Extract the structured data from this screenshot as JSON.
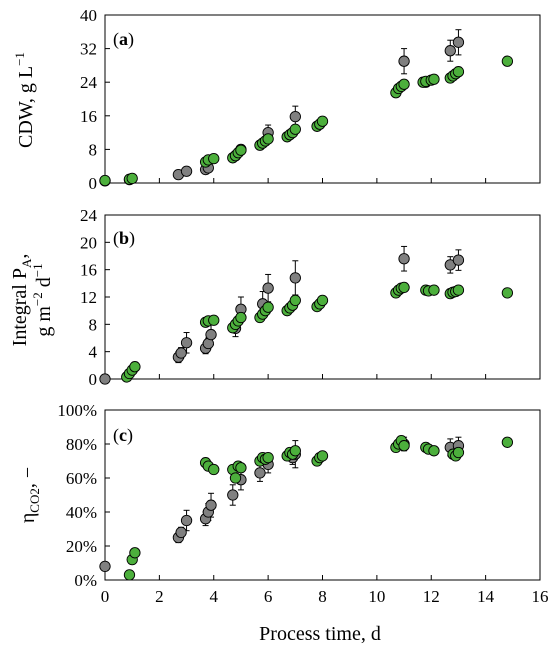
{
  "chart_data": [
    {
      "type": "scatter",
      "panel_label": "a",
      "ylabel_main": "CDW, g L",
      "ylabel_sup": "−1",
      "ylim": [
        0,
        40
      ],
      "yticks": [
        0,
        8,
        16,
        24,
        32,
        40
      ],
      "ytick_labels": [
        "0",
        "8",
        "16",
        "24",
        "32",
        "40"
      ],
      "xlim": [
        0,
        16
      ],
      "series": [
        {
          "color": "#808080",
          "points": [
            {
              "x": 0.0,
              "y": 0.5,
              "err": 0.2
            },
            {
              "x": 0.9,
              "y": 0.8,
              "err": 0.2
            },
            {
              "x": 2.7,
              "y": 2.0,
              "err": 0.3
            },
            {
              "x": 3.0,
              "y": 2.8,
              "err": 0.4
            },
            {
              "x": 3.7,
              "y": 3.2,
              "err": 0.5
            },
            {
              "x": 3.8,
              "y": 3.6,
              "err": 0.5
            },
            {
              "x": 4.8,
              "y": 6.5,
              "err": 1.0
            },
            {
              "x": 5.0,
              "y": 8.0,
              "err": 1.0
            },
            {
              "x": 6.0,
              "y": 12.0,
              "err": 1.8
            },
            {
              "x": 7.0,
              "y": 15.8,
              "err": 2.5
            },
            {
              "x": 11.0,
              "y": 29.0,
              "err": 3.0
            },
            {
              "x": 11.8,
              "y": 24.0,
              "err": 1.0
            },
            {
              "x": 12.7,
              "y": 31.5,
              "err": 2.5
            },
            {
              "x": 13.0,
              "y": 33.5,
              "err": 3.0
            }
          ]
        },
        {
          "color": "#4caf3c",
          "points": [
            {
              "x": 0.0,
              "y": 0.6
            },
            {
              "x": 0.9,
              "y": 0.9
            },
            {
              "x": 1.0,
              "y": 1.1
            },
            {
              "x": 3.7,
              "y": 5.0
            },
            {
              "x": 3.8,
              "y": 5.5
            },
            {
              "x": 4.0,
              "y": 5.8
            },
            {
              "x": 4.7,
              "y": 6.0
            },
            {
              "x": 4.8,
              "y": 6.5
            },
            {
              "x": 4.9,
              "y": 7.2
            },
            {
              "x": 5.0,
              "y": 7.8
            },
            {
              "x": 5.7,
              "y": 9.0
            },
            {
              "x": 5.8,
              "y": 9.5
            },
            {
              "x": 5.9,
              "y": 10.0
            },
            {
              "x": 6.0,
              "y": 10.5
            },
            {
              "x": 6.7,
              "y": 11.0
            },
            {
              "x": 6.8,
              "y": 11.5
            },
            {
              "x": 6.9,
              "y": 12.0
            },
            {
              "x": 7.0,
              "y": 12.8
            },
            {
              "x": 7.8,
              "y": 13.5
            },
            {
              "x": 7.9,
              "y": 14.0
            },
            {
              "x": 8.0,
              "y": 14.7
            },
            {
              "x": 10.7,
              "y": 21.5
            },
            {
              "x": 10.8,
              "y": 22.5
            },
            {
              "x": 10.9,
              "y": 23.0
            },
            {
              "x": 11.0,
              "y": 23.5
            },
            {
              "x": 11.7,
              "y": 24.0
            },
            {
              "x": 11.8,
              "y": 24.2
            },
            {
              "x": 12.0,
              "y": 24.5
            },
            {
              "x": 12.1,
              "y": 24.7
            },
            {
              "x": 12.7,
              "y": 25.0
            },
            {
              "x": 12.8,
              "y": 25.5
            },
            {
              "x": 12.9,
              "y": 26.0
            },
            {
              "x": 13.0,
              "y": 26.5
            },
            {
              "x": 14.8,
              "y": 29.0
            }
          ]
        }
      ]
    },
    {
      "type": "scatter",
      "panel_label": "b",
      "ylabel_main": "Integral P",
      "ylabel_sub": "A",
      "ylabel_line2": "g m",
      "ylabel_sup1": "−2",
      "ylabel_mid": " d",
      "ylabel_sup2": "−1",
      "ylim": [
        0,
        24
      ],
      "yticks": [
        0,
        4,
        8,
        12,
        16,
        20,
        24
      ],
      "ytick_labels": [
        "0",
        "4",
        "8",
        "12",
        "16",
        "20",
        "24"
      ],
      "xlim": [
        0,
        16
      ],
      "series": [
        {
          "color": "#808080",
          "points": [
            {
              "x": 0.0,
              "y": 0.0,
              "err": 0.2
            },
            {
              "x": 2.7,
              "y": 3.2,
              "err": 0.8
            },
            {
              "x": 2.8,
              "y": 3.8,
              "err": 0.8
            },
            {
              "x": 3.0,
              "y": 5.3,
              "err": 1.5
            },
            {
              "x": 3.7,
              "y": 4.5,
              "err": 0.8
            },
            {
              "x": 3.8,
              "y": 5.2,
              "err": 0.8
            },
            {
              "x": 3.9,
              "y": 6.5,
              "err": 1.5
            },
            {
              "x": 4.8,
              "y": 7.4,
              "err": 1.2
            },
            {
              "x": 5.0,
              "y": 10.2,
              "err": 1.8
            },
            {
              "x": 5.8,
              "y": 11.0,
              "err": 1.8
            },
            {
              "x": 6.0,
              "y": 13.3,
              "err": 2.0
            },
            {
              "x": 7.0,
              "y": 14.8,
              "err": 2.5
            },
            {
              "x": 11.0,
              "y": 17.6,
              "err": 1.8
            },
            {
              "x": 12.7,
              "y": 16.7,
              "err": 1.2
            },
            {
              "x": 13.0,
              "y": 17.4,
              "err": 1.5
            }
          ]
        },
        {
          "color": "#4caf3c",
          "points": [
            {
              "x": 0.8,
              "y": 0.3
            },
            {
              "x": 0.9,
              "y": 0.8
            },
            {
              "x": 1.0,
              "y": 1.3
            },
            {
              "x": 1.1,
              "y": 1.8
            },
            {
              "x": 3.7,
              "y": 8.3
            },
            {
              "x": 3.8,
              "y": 8.5
            },
            {
              "x": 4.0,
              "y": 8.6
            },
            {
              "x": 4.7,
              "y": 7.5
            },
            {
              "x": 4.8,
              "y": 8.0
            },
            {
              "x": 4.9,
              "y": 8.5
            },
            {
              "x": 5.0,
              "y": 9.0
            },
            {
              "x": 5.7,
              "y": 9.0
            },
            {
              "x": 5.8,
              "y": 9.5
            },
            {
              "x": 5.9,
              "y": 10.0
            },
            {
              "x": 6.0,
              "y": 10.5
            },
            {
              "x": 6.7,
              "y": 10.0
            },
            {
              "x": 6.8,
              "y": 10.4
            },
            {
              "x": 6.9,
              "y": 10.8
            },
            {
              "x": 7.0,
              "y": 11.5
            },
            {
              "x": 7.8,
              "y": 10.6
            },
            {
              "x": 7.9,
              "y": 11.0
            },
            {
              "x": 8.0,
              "y": 11.5
            },
            {
              "x": 10.7,
              "y": 12.6
            },
            {
              "x": 10.8,
              "y": 13.0
            },
            {
              "x": 10.9,
              "y": 13.3
            },
            {
              "x": 11.0,
              "y": 13.4
            },
            {
              "x": 11.8,
              "y": 13.0
            },
            {
              "x": 11.9,
              "y": 12.9
            },
            {
              "x": 12.1,
              "y": 13.0
            },
            {
              "x": 12.7,
              "y": 12.5
            },
            {
              "x": 12.8,
              "y": 12.7
            },
            {
              "x": 12.9,
              "y": 12.8
            },
            {
              "x": 13.0,
              "y": 13.0
            },
            {
              "x": 14.8,
              "y": 12.6
            }
          ]
        }
      ]
    },
    {
      "type": "scatter",
      "panel_label": "c",
      "ylabel_main": "η",
      "ylabel_sub": "CO2",
      "ylabel_tail": ", −",
      "ylim": [
        0,
        100
      ],
      "yticks": [
        0,
        20,
        40,
        60,
        80,
        100
      ],
      "ytick_labels": [
        "0%",
        "20%",
        "40%",
        "60%",
        "80%",
        "100%"
      ],
      "xlim": [
        0,
        16
      ],
      "xticks": [
        0,
        2,
        4,
        6,
        8,
        10,
        12,
        14,
        16
      ],
      "xtick_labels": [
        "0",
        "2",
        "4",
        "6",
        "8",
        "10",
        "12",
        "14",
        "16"
      ],
      "xlabel": "Process time, d",
      "series": [
        {
          "color": "#808080",
          "points": [
            {
              "x": 0.0,
              "y": 8,
              "err": 1
            },
            {
              "x": 2.7,
              "y": 25,
              "err": 3
            },
            {
              "x": 2.8,
              "y": 28,
              "err": 3
            },
            {
              "x": 3.0,
              "y": 35,
              "err": 6
            },
            {
              "x": 3.7,
              "y": 36,
              "err": 4
            },
            {
              "x": 3.8,
              "y": 40,
              "err": 5
            },
            {
              "x": 3.9,
              "y": 44,
              "err": 7
            },
            {
              "x": 4.7,
              "y": 50,
              "err": 6
            },
            {
              "x": 5.0,
              "y": 59,
              "err": 6
            },
            {
              "x": 5.7,
              "y": 63,
              "err": 5
            },
            {
              "x": 6.0,
              "y": 68,
              "err": 5
            },
            {
              "x": 6.9,
              "y": 72,
              "err": 4
            },
            {
              "x": 7.0,
              "y": 74,
              "err": 8
            },
            {
              "x": 11.0,
              "y": 80,
              "err": 4
            },
            {
              "x": 12.7,
              "y": 78,
              "err": 5
            },
            {
              "x": 13.0,
              "y": 79,
              "err": 5
            }
          ]
        },
        {
          "color": "#4caf3c",
          "points": [
            {
              "x": 0.9,
              "y": 3
            },
            {
              "x": 1.0,
              "y": 12
            },
            {
              "x": 1.1,
              "y": 16
            },
            {
              "x": 3.7,
              "y": 69
            },
            {
              "x": 3.8,
              "y": 67
            },
            {
              "x": 4.0,
              "y": 65
            },
            {
              "x": 4.7,
              "y": 65
            },
            {
              "x": 4.8,
              "y": 60
            },
            {
              "x": 4.9,
              "y": 67
            },
            {
              "x": 5.0,
              "y": 66
            },
            {
              "x": 5.7,
              "y": 70
            },
            {
              "x": 5.8,
              "y": 72
            },
            {
              "x": 5.9,
              "y": 71
            },
            {
              "x": 6.0,
              "y": 72
            },
            {
              "x": 6.7,
              "y": 73
            },
            {
              "x": 6.8,
              "y": 75
            },
            {
              "x": 6.9,
              "y": 74
            },
            {
              "x": 7.0,
              "y": 76
            },
            {
              "x": 7.8,
              "y": 70
            },
            {
              "x": 7.9,
              "y": 72
            },
            {
              "x": 8.0,
              "y": 73
            },
            {
              "x": 10.7,
              "y": 78
            },
            {
              "x": 10.8,
              "y": 80
            },
            {
              "x": 10.9,
              "y": 82
            },
            {
              "x": 11.0,
              "y": 79
            },
            {
              "x": 11.8,
              "y": 78
            },
            {
              "x": 11.9,
              "y": 77
            },
            {
              "x": 12.1,
              "y": 76
            },
            {
              "x": 12.8,
              "y": 74
            },
            {
              "x": 12.9,
              "y": 73
            },
            {
              "x": 13.0,
              "y": 75
            },
            {
              "x": 14.8,
              "y": 81
            }
          ]
        }
      ]
    }
  ]
}
